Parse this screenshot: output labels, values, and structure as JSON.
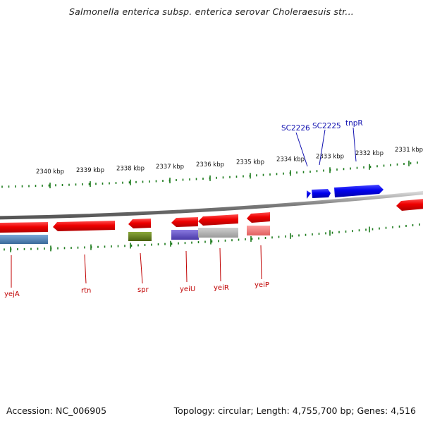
{
  "title": "Salmonella enterica subsp. enterica serovar Choleraesuis str...",
  "footer": {
    "accession": "Accession: NC_006905",
    "summary": "Topology: circular; Length: 4,755,700 bp; Genes: 4,516"
  },
  "ruler": {
    "labels": [
      "2340 kbp",
      "2339 kbp",
      "2338 kbp",
      "2337 kbp",
      "2336 kbp",
      "2335 kbp",
      "2334 kbp",
      "2333 kbp",
      "2332 kbp",
      "2331 kbp"
    ],
    "tick_color": "#1a7a1a"
  },
  "genes_top": [
    {
      "name": "SC2226",
      "color": "#0000ee"
    },
    {
      "name": "SC2225",
      "color": "#0000ee"
    },
    {
      "name": "tnpR",
      "color": "#0000ee"
    }
  ],
  "genes_bottom": [
    {
      "name": "yejA",
      "color": "#ee0000"
    },
    {
      "name": "rtn",
      "color": "#ee0000"
    },
    {
      "name": "spr",
      "color": "#ee0000"
    },
    {
      "name": "yeiU",
      "color": "#ee0000"
    },
    {
      "name": "yeiR",
      "color": "#ee0000"
    },
    {
      "name": "yeiP",
      "color": "#ee0000"
    }
  ],
  "colors": {
    "backbone": "#8a8a8a",
    "forward_gene": "#1a1aee",
    "reverse_gene": "#ee1a1a",
    "label_red": "#c00000",
    "label_blue": "#1010b0",
    "cog_blue": "#4a7fb5",
    "cog_olive": "#5a7a1a",
    "cog_purple": "#6a5acd",
    "cog_grey": "#b0b0b0",
    "cog_pink": "#f08080"
  }
}
